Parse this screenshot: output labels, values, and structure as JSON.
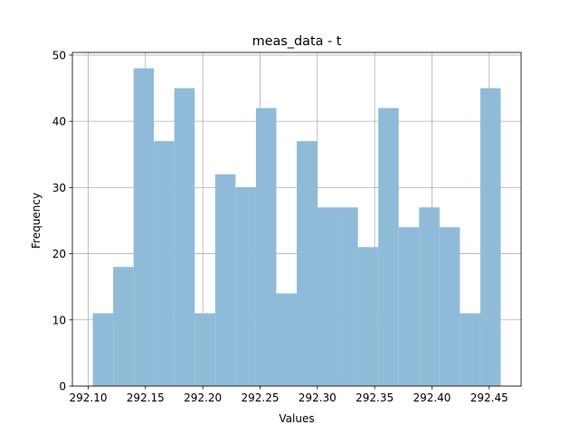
{
  "chart_data": {
    "type": "bar",
    "title": "meas_data - t",
    "xlabel": "Values",
    "ylabel": "Frequency",
    "bins": [
      {
        "x0": 292.104,
        "x1": 292.1218,
        "count": 11
      },
      {
        "x0": 292.1218,
        "x1": 292.1396,
        "count": 18
      },
      {
        "x0": 292.1396,
        "x1": 292.1574,
        "count": 48
      },
      {
        "x0": 292.1574,
        "x1": 292.1752,
        "count": 37
      },
      {
        "x0": 292.1752,
        "x1": 292.193,
        "count": 45
      },
      {
        "x0": 292.193,
        "x1": 292.2108,
        "count": 11
      },
      {
        "x0": 292.2108,
        "x1": 292.2286,
        "count": 32
      },
      {
        "x0": 292.2286,
        "x1": 292.2464,
        "count": 30
      },
      {
        "x0": 292.2464,
        "x1": 292.2642,
        "count": 42
      },
      {
        "x0": 292.2642,
        "x1": 292.282,
        "count": 14
      },
      {
        "x0": 292.282,
        "x1": 292.2998,
        "count": 37
      },
      {
        "x0": 292.2998,
        "x1": 292.3176,
        "count": 27
      },
      {
        "x0": 292.3176,
        "x1": 292.3354,
        "count": 27
      },
      {
        "x0": 292.3354,
        "x1": 292.3532,
        "count": 21
      },
      {
        "x0": 292.3532,
        "x1": 292.371,
        "count": 42
      },
      {
        "x0": 292.371,
        "x1": 292.3888,
        "count": 24
      },
      {
        "x0": 292.3888,
        "x1": 292.4066,
        "count": 27
      },
      {
        "x0": 292.4066,
        "x1": 292.4244,
        "count": 24
      },
      {
        "x0": 292.4244,
        "x1": 292.4422,
        "count": 11
      },
      {
        "x0": 292.4422,
        "x1": 292.46,
        "count": 45
      }
    ],
    "xlim": [
      292.0862,
      292.4778
    ],
    "ylim": [
      0,
      50.4
    ],
    "xticks": [
      "292.10",
      "292.15",
      "292.20",
      "292.25",
      "292.30",
      "292.35",
      "292.40",
      "292.45"
    ],
    "yticks": [
      "0",
      "10",
      "20",
      "30",
      "40",
      "50"
    ],
    "grid": true,
    "bar_color": "#8FBBD9",
    "legend": null
  }
}
